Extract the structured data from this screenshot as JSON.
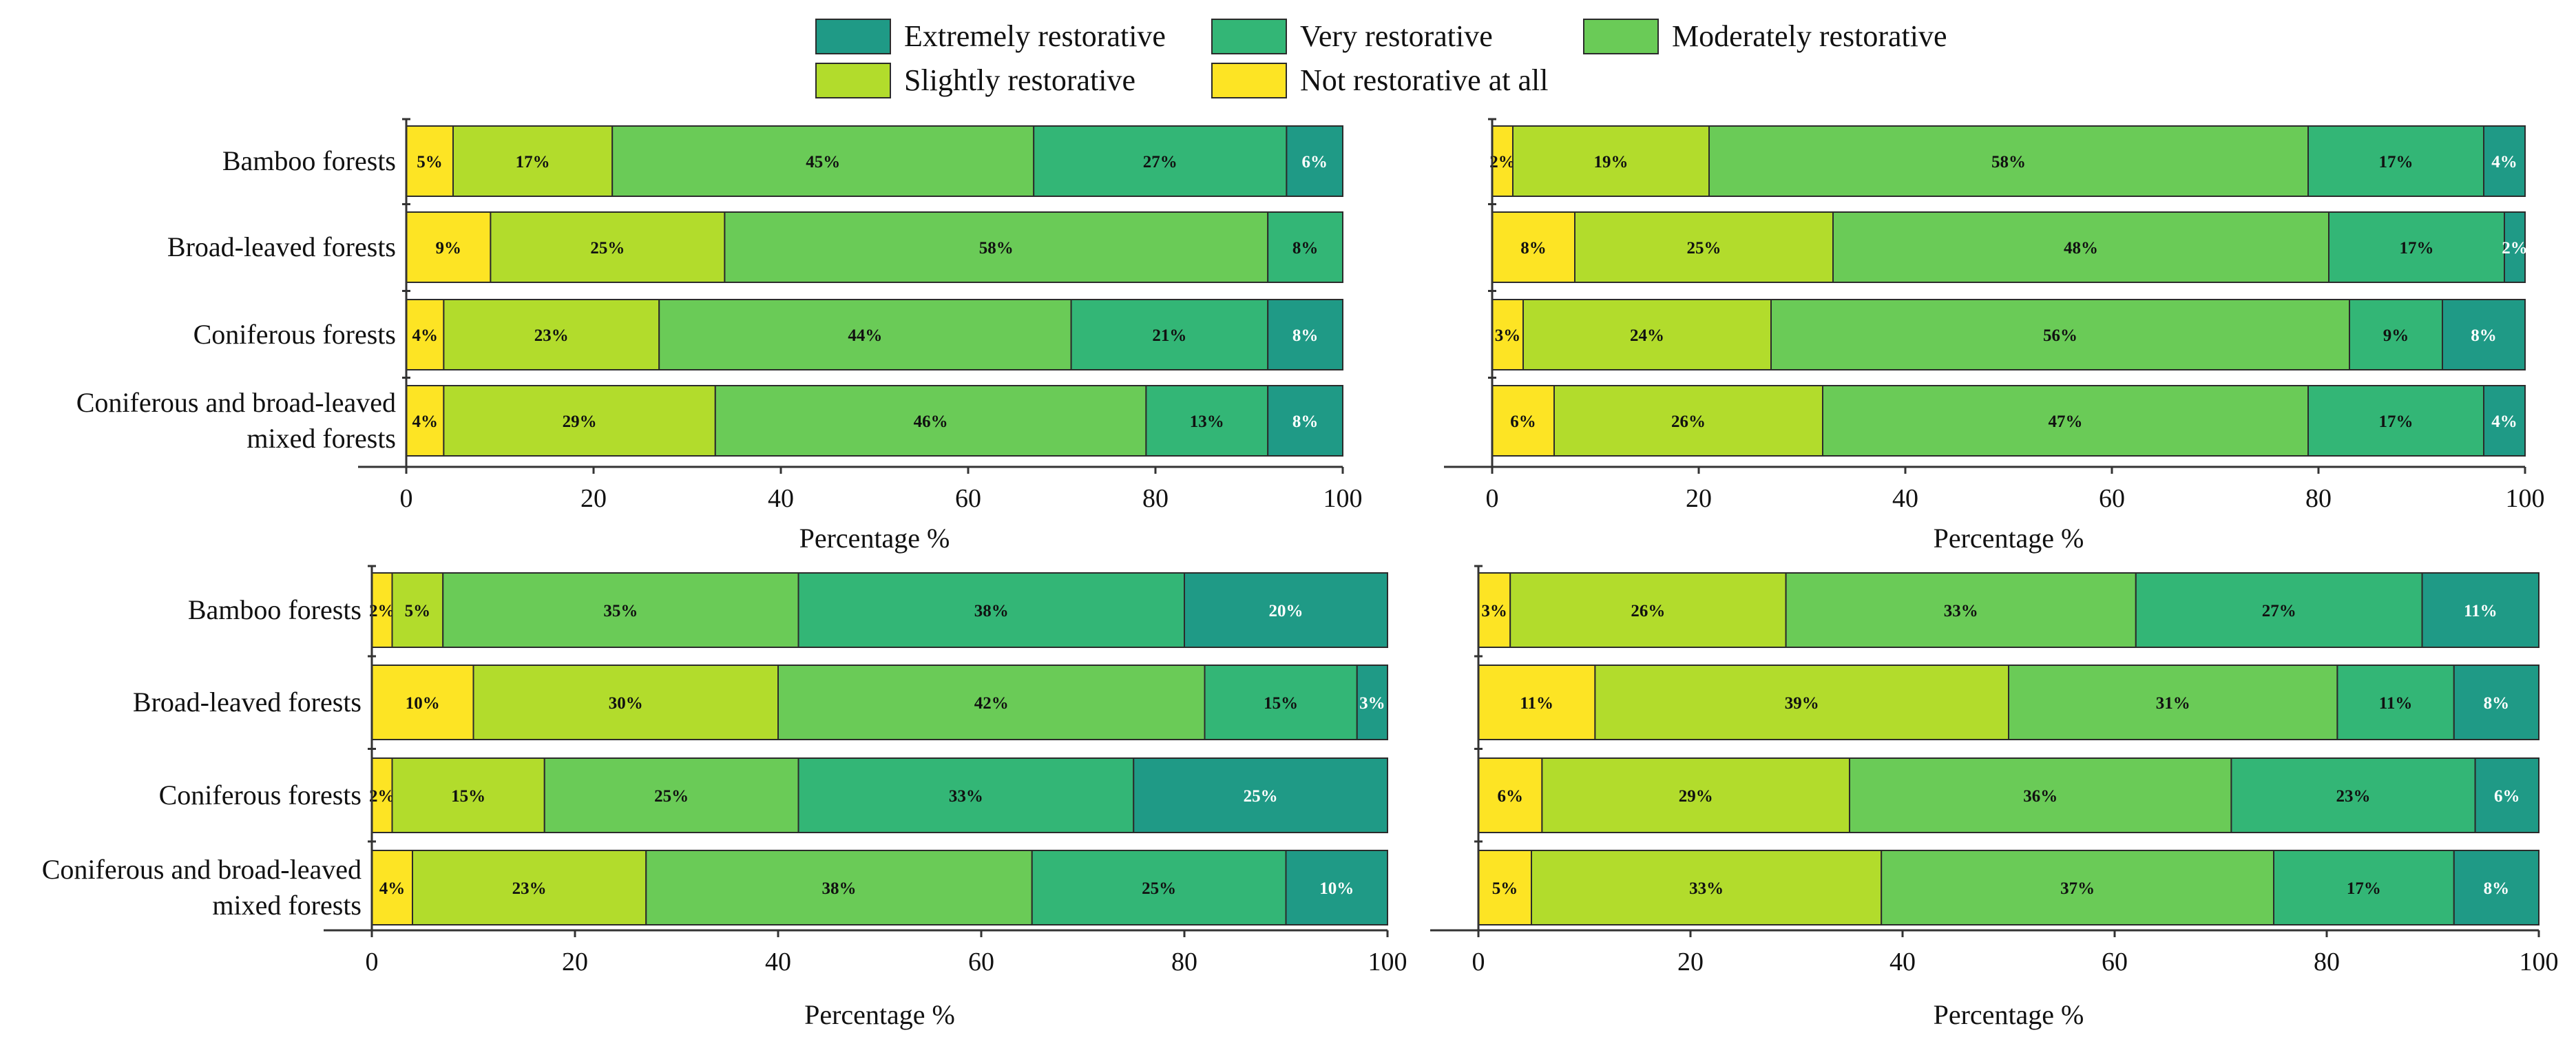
{
  "legend": {
    "items": [
      {
        "label": "Extremely restorative",
        "color": "#1f9a86"
      },
      {
        "label": "Very restorative",
        "color": "#33b676"
      },
      {
        "label": "Moderately restorative",
        "color": "#6acb57"
      },
      {
        "label": "Slightly restorative",
        "color": "#b2dc2c"
      },
      {
        "label": "Not restorative at all",
        "color": "#fde424"
      }
    ]
  },
  "chart_data": [
    {
      "type": "bar",
      "orientation": "horizontal",
      "stacked": true,
      "xlabel": "Percentage %",
      "xlim": [
        0,
        100
      ],
      "xticks": [
        0,
        20,
        40,
        60,
        80,
        100
      ],
      "categories": [
        "Bamboo forests",
        "Broad-leaved forests",
        "Coniferous forests",
        "Coniferous and broad-leaved mixed forests"
      ],
      "category_lines": [
        [
          "Bamboo forests"
        ],
        [
          "Broad-leaved forests"
        ],
        [
          "Coniferous forests"
        ],
        [
          "Coniferous and broad-leaved",
          "mixed forests"
        ]
      ],
      "series": [
        {
          "name": "Not restorative at all",
          "values": [
            5,
            9,
            4,
            4
          ]
        },
        {
          "name": "Slightly restorative",
          "values": [
            17,
            25,
            23,
            29
          ]
        },
        {
          "name": "Moderately restorative",
          "values": [
            45,
            58,
            44,
            46
          ]
        },
        {
          "name": "Very restorative",
          "values": [
            27,
            8,
            21,
            13
          ]
        },
        {
          "name": "Extremely restorative",
          "values": [
            6,
            0,
            8,
            8
          ]
        }
      ],
      "labels": [
        [
          "5%",
          "17%",
          "45%",
          "27%",
          "6%"
        ],
        [
          "9%",
          "25%",
          "58%",
          "8%",
          ""
        ],
        [
          "4%",
          "23%",
          "44%",
          "21%",
          "8%"
        ],
        [
          "4%",
          "29%",
          "46%",
          "13%",
          "8%"
        ]
      ]
    },
    {
      "type": "bar",
      "orientation": "horizontal",
      "stacked": true,
      "xlabel": "Percentage %",
      "xlim": [
        0,
        100
      ],
      "xticks": [
        0,
        20,
        40,
        60,
        80,
        100
      ],
      "categories": [],
      "category_lines": [],
      "series": [
        {
          "name": "Not restorative at all",
          "values": [
            2,
            8,
            3,
            6
          ]
        },
        {
          "name": "Slightly restorative",
          "values": [
            19,
            25,
            24,
            26
          ]
        },
        {
          "name": "Moderately restorative",
          "values": [
            58,
            48,
            56,
            47
          ]
        },
        {
          "name": "Very restorative",
          "values": [
            17,
            17,
            9,
            17
          ]
        },
        {
          "name": "Extremely restorative",
          "values": [
            4,
            2,
            8,
            4
          ]
        }
      ],
      "labels": [
        [
          "2%",
          "19%",
          "58%",
          "17%",
          "4%"
        ],
        [
          "8%",
          "25%",
          "48%",
          "17%",
          "2%"
        ],
        [
          "3%",
          "24%",
          "56%",
          "9%",
          "8%"
        ],
        [
          "6%",
          "26%",
          "47%",
          "17%",
          "4%"
        ]
      ]
    },
    {
      "type": "bar",
      "orientation": "horizontal",
      "stacked": true,
      "xlabel": "Percentage %",
      "xlim": [
        0,
        100
      ],
      "xticks": [
        0,
        20,
        40,
        60,
        80,
        100
      ],
      "categories": [
        "Bamboo forests",
        "Broad-leaved forests",
        "Coniferous forests",
        "Coniferous and broad-leaved mixed forests"
      ],
      "category_lines": [
        [
          "Bamboo forests"
        ],
        [
          "Broad-leaved forests"
        ],
        [
          "Coniferous forests"
        ],
        [
          "Coniferous and broad-leaved",
          "mixed forests"
        ]
      ],
      "series": [
        {
          "name": "Not restorative at all",
          "values": [
            2,
            10,
            2,
            4
          ]
        },
        {
          "name": "Slightly restorative",
          "values": [
            5,
            30,
            15,
            23
          ]
        },
        {
          "name": "Moderately restorative",
          "values": [
            35,
            42,
            25,
            38
          ]
        },
        {
          "name": "Very restorative",
          "values": [
            38,
            15,
            33,
            25
          ]
        },
        {
          "name": "Extremely restorative",
          "values": [
            20,
            3,
            25,
            10
          ]
        }
      ],
      "labels": [
        [
          "2%",
          "5%",
          "35%",
          "38%",
          "20%"
        ],
        [
          "10%",
          "30%",
          "42%",
          "15%",
          "3%"
        ],
        [
          "2%",
          "15%",
          "25%",
          "33%",
          "25%"
        ],
        [
          "4%",
          "23%",
          "38%",
          "25%",
          "10%"
        ]
      ]
    },
    {
      "type": "bar",
      "orientation": "horizontal",
      "stacked": true,
      "xlabel": "Percentage %",
      "xlim": [
        0,
        100
      ],
      "xticks": [
        0,
        20,
        40,
        60,
        80,
        100
      ],
      "categories": [],
      "category_lines": [],
      "series": [
        {
          "name": "Not restorative at all",
          "values": [
            3,
            11,
            6,
            5
          ]
        },
        {
          "name": "Slightly restorative",
          "values": [
            26,
            39,
            29,
            33
          ]
        },
        {
          "name": "Moderately restorative",
          "values": [
            33,
            31,
            36,
            37
          ]
        },
        {
          "name": "Very restorative",
          "values": [
            27,
            11,
            23,
            17
          ]
        },
        {
          "name": "Extremely restorative",
          "values": [
            11,
            8,
            6,
            8
          ]
        }
      ],
      "labels": [
        [
          "3%",
          "26%",
          "33%",
          "27%",
          "11%"
        ],
        [
          "11%",
          "39%",
          "31%",
          "11%",
          "8%"
        ],
        [
          "6%",
          "29%",
          "36%",
          "23%",
          "6%"
        ],
        [
          "5%",
          "33%",
          "37%",
          "17%",
          "8%"
        ]
      ]
    }
  ]
}
